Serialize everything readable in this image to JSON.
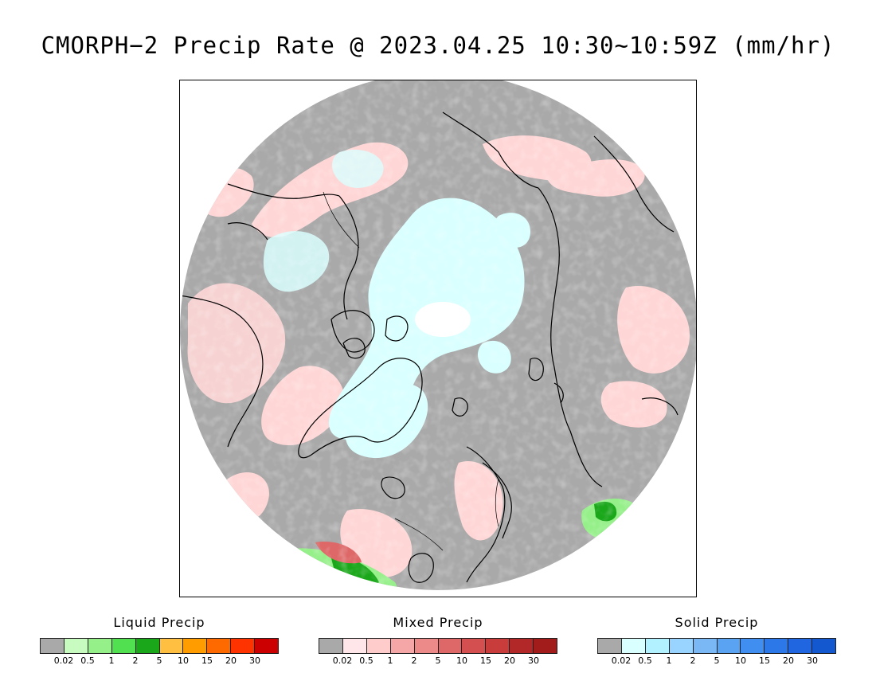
{
  "title": "CMORPH−2 Precip Rate @ 2023.04.25 10:30~10:59Z (mm/hr)",
  "map": {
    "projection": "north-polar-stereographic",
    "colors": {
      "background": "#a9a9a9",
      "outside": "#ffffff",
      "coastline": "#000000"
    }
  },
  "legends": [
    {
      "title": "Liquid Precip",
      "colors": [
        "#a9a9a9",
        "#c8fbc0",
        "#96f08a",
        "#50e050",
        "#1aa71a",
        "#ffbf40",
        "#ff9d00",
        "#ff6a00",
        "#ff3300",
        "#cc0000"
      ],
      "labels": [
        "0.02",
        "0.5",
        "1",
        "2",
        "5",
        "10",
        "15",
        "20",
        "30"
      ]
    },
    {
      "title": "Mixed Precip",
      "colors": [
        "#a9a9a9",
        "#ffe6e8",
        "#ffcccc",
        "#f5a6a6",
        "#ec8a8a",
        "#de6868",
        "#d45050",
        "#c83c3c",
        "#b22828",
        "#a21c1c"
      ],
      "labels": [
        "0.02",
        "0.5",
        "1",
        "2",
        "5",
        "10",
        "15",
        "20",
        "30"
      ]
    },
    {
      "title": "Solid Precip",
      "colors": [
        "#a9a9a9",
        "#d9ffff",
        "#b2f1ff",
        "#98d4ff",
        "#7ab8f5",
        "#5aa2f2",
        "#3f8ef0",
        "#2c78e8",
        "#1f66e0",
        "#1458d0"
      ],
      "labels": [
        "0.02",
        "0.5",
        "1",
        "2",
        "5",
        "10",
        "15",
        "20",
        "30"
      ]
    }
  ]
}
